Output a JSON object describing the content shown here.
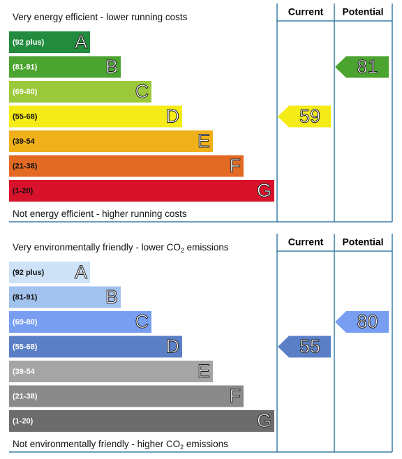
{
  "panels": [
    {
      "top_text": [
        "Very energy efficient - lower running costs"
      ],
      "bottom_text": [
        "Not energy efficient - higher running costs"
      ],
      "headers": [
        "Current",
        "Potential"
      ],
      "bands": [
        {
          "range": "(92 plus)",
          "letter": "A",
          "color": "#238b3d"
        },
        {
          "range": "(81-91)",
          "letter": "B",
          "color": "#4ba42f"
        },
        {
          "range": "(69-80)",
          "letter": "C",
          "color": "#9cc93b"
        },
        {
          "range": "(55-68)",
          "letter": "D",
          "color": "#f5eb17"
        },
        {
          "range": "(39-54",
          "letter": "E",
          "color": "#efb019"
        },
        {
          "range": "(21-38)",
          "letter": "F",
          "color": "#e36a23"
        },
        {
          "range": "(1-20)",
          "letter": "G",
          "color": "#d8122b"
        }
      ],
      "current": 59,
      "potential": 81
    },
    {
      "top_text": [
        "Very environmentally friendly - lower CO",
        "2",
        " emissions"
      ],
      "bottom_text": [
        "Not environmentally friendly - higher CO",
        "2",
        " emissions"
      ],
      "headers": [
        "Current",
        "Potential"
      ],
      "bands": [
        {
          "range": "(92 plus)",
          "letter": "A",
          "color": "#cde2f7"
        },
        {
          "range": "(81-91)",
          "letter": "B",
          "color": "#a2c2ee"
        },
        {
          "range": "(69-80)",
          "letter": "C",
          "color": "#789ef2"
        },
        {
          "range": "(55-68)",
          "letter": "D",
          "color": "#5b7fc6"
        },
        {
          "range": "(39-54",
          "letter": "E",
          "color": "#a5a5a5"
        },
        {
          "range": "(21-38)",
          "letter": "F",
          "color": "#8a8a8a"
        },
        {
          "range": "(1-20)",
          "letter": "G",
          "color": "#6c6c6c"
        }
      ],
      "current": 55,
      "potential": 80
    }
  ]
}
